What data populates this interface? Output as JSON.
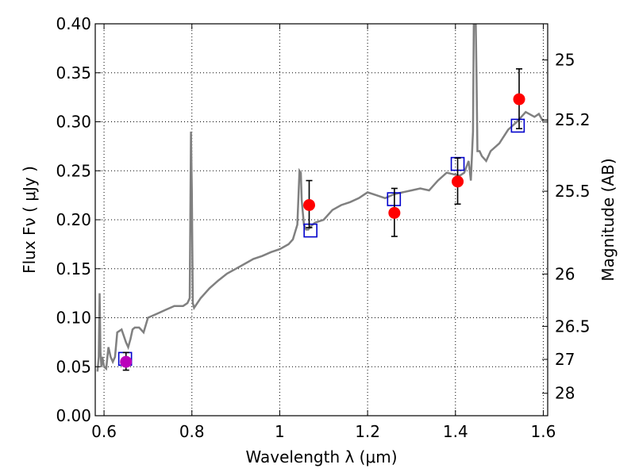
{
  "chart_data": {
    "type": "line",
    "xlabel": "Wavelength  λ (μm)",
    "ylabel": "Flux  Fν  ( μJy )",
    "ylabel_right": "Magnitude (AB)",
    "xlim": [
      0.58,
      1.61
    ],
    "ylim": [
      0.0,
      0.4
    ],
    "grid": true,
    "x_ticks": [
      0.6,
      0.8,
      1.0,
      1.2,
      1.4,
      1.6
    ],
    "x_tick_labels": [
      "0.6",
      "0.8",
      "1",
      "1.2",
      "1.4",
      "1.6"
    ],
    "y_ticks": [
      0.0,
      0.05,
      0.1,
      0.15,
      0.2,
      0.25,
      0.3,
      0.35,
      0.4
    ],
    "y_tick_labels": [
      "0.00",
      "0.05",
      "0.10",
      "0.15",
      "0.20",
      "0.25",
      "0.30",
      "0.35",
      "0.40"
    ],
    "mag_ticks": [
      {
        "label": "25",
        "flux": 0.3631
      },
      {
        "label": "25.2",
        "flux": 0.302
      },
      {
        "label": "25.5",
        "flux": 0.2291
      },
      {
        "label": "26",
        "flux": 0.1446
      },
      {
        "label": "26.5",
        "flux": 0.0912
      },
      {
        "label": "27",
        "flux": 0.0575
      },
      {
        "label": "28",
        "flux": 0.0229
      }
    ],
    "model_spectrum": {
      "color": "#808080",
      "x": [
        0.585,
        0.588,
        0.59,
        0.592,
        0.594,
        0.596,
        0.6,
        0.605,
        0.61,
        0.615,
        0.62,
        0.625,
        0.63,
        0.64,
        0.65,
        0.655,
        0.66,
        0.665,
        0.67,
        0.68,
        0.69,
        0.7,
        0.72,
        0.74,
        0.76,
        0.78,
        0.79,
        0.795,
        0.798,
        0.8,
        0.802,
        0.805,
        0.82,
        0.84,
        0.86,
        0.88,
        0.9,
        0.92,
        0.94,
        0.96,
        0.98,
        1.0,
        1.02,
        1.03,
        1.04,
        1.045,
        1.048,
        1.05,
        1.055,
        1.06,
        1.065,
        1.07,
        1.08,
        1.1,
        1.12,
        1.14,
        1.16,
        1.18,
        1.2,
        1.22,
        1.24,
        1.26,
        1.28,
        1.3,
        1.32,
        1.34,
        1.36,
        1.38,
        1.4,
        1.41,
        1.42,
        1.43,
        1.435,
        1.44,
        1.442,
        1.444,
        1.446,
        1.448,
        1.45,
        1.455,
        1.46,
        1.47,
        1.48,
        1.5,
        1.52,
        1.54,
        1.56,
        1.58,
        1.59,
        1.6,
        1.61
      ],
      "y": [
        0.045,
        0.06,
        0.125,
        0.065,
        0.05,
        0.06,
        0.05,
        0.048,
        0.07,
        0.06,
        0.055,
        0.06,
        0.085,
        0.088,
        0.075,
        0.07,
        0.078,
        0.088,
        0.09,
        0.09,
        0.085,
        0.1,
        0.104,
        0.108,
        0.112,
        0.112,
        0.115,
        0.12,
        0.29,
        0.23,
        0.115,
        0.11,
        0.12,
        0.13,
        0.138,
        0.145,
        0.15,
        0.155,
        0.16,
        0.163,
        0.167,
        0.17,
        0.175,
        0.18,
        0.195,
        0.25,
        0.248,
        0.22,
        0.195,
        0.19,
        0.19,
        0.193,
        0.197,
        0.2,
        0.21,
        0.215,
        0.218,
        0.222,
        0.228,
        0.225,
        0.222,
        0.226,
        0.228,
        0.23,
        0.232,
        0.23,
        0.24,
        0.248,
        0.246,
        0.245,
        0.248,
        0.26,
        0.24,
        0.29,
        0.41,
        0.42,
        0.41,
        0.35,
        0.27,
        0.27,
        0.265,
        0.26,
        0.27,
        0.278,
        0.292,
        0.3,
        0.31,
        0.305,
        0.308,
        0.3,
        0.3
      ]
    },
    "measurements": [
      {
        "x": 0.65,
        "y": 0.055,
        "err_low": 0.0085,
        "err_high": 0.0095,
        "color": "#bb00bb"
      },
      {
        "x": 1.067,
        "y": 0.215,
        "err_low": 0.023,
        "err_high": 0.025,
        "color": "#ff0000"
      },
      {
        "x": 1.261,
        "y": 0.207,
        "err_low": 0.024,
        "err_high": 0.025,
        "color": "#ff0000"
      },
      {
        "x": 1.405,
        "y": 0.239,
        "err_low": 0.023,
        "err_high": 0.024,
        "color": "#ff0000"
      },
      {
        "x": 1.545,
        "y": 0.323,
        "err_low": 0.03,
        "err_high": 0.031,
        "color": "#ff0000"
      }
    ],
    "model_photometry": {
      "color": "#0000cc",
      "points": [
        {
          "x": 0.648,
          "y": 0.058
        },
        {
          "x": 1.07,
          "y": 0.189
        },
        {
          "x": 1.26,
          "y": 0.221
        },
        {
          "x": 1.405,
          "y": 0.257
        },
        {
          "x": 1.542,
          "y": 0.296
        }
      ]
    }
  }
}
